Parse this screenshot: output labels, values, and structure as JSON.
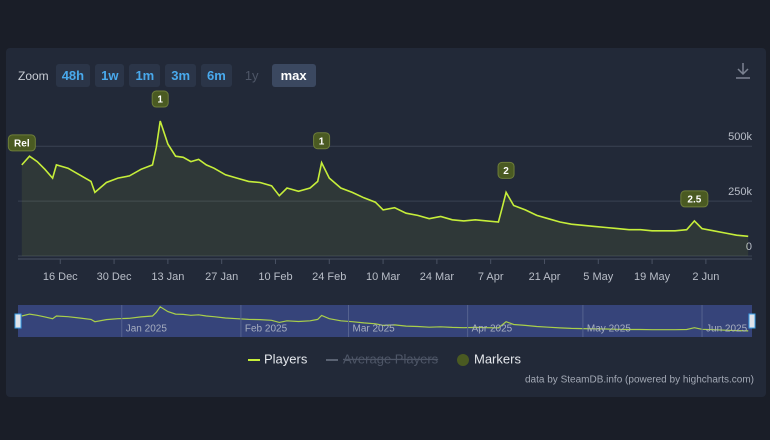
{
  "zoom": {
    "label": "Zoom",
    "buttons": [
      "48h",
      "1w",
      "1m",
      "3m",
      "6m",
      "1y",
      "max"
    ],
    "selected": "max",
    "disabled": [
      "1y"
    ]
  },
  "chart_data": {
    "type": "line",
    "x": [
      "6 Dec",
      "8 Dec",
      "10 Dec",
      "12 Dec",
      "14 Dec",
      "15 Dec",
      "18 Dec",
      "21 Dec",
      "24 Dec",
      "25 Dec",
      "28 Dec",
      "31 Dec",
      "3 Jan",
      "6 Jan",
      "9 Jan",
      "10 Jan",
      "11 Jan",
      "13 Jan",
      "15 Jan",
      "17 Jan",
      "19 Jan",
      "21 Jan",
      "23 Jan",
      "25 Jan",
      "28 Jan",
      "31 Jan",
      "3 Feb",
      "6 Feb",
      "9 Feb",
      "11 Feb",
      "13 Feb",
      "16 Feb",
      "19 Feb",
      "21 Feb",
      "22 Feb",
      "24 Feb",
      "27 Feb",
      "2 Mar",
      "5 Mar",
      "8 Mar",
      "10 Mar",
      "13 Mar",
      "16 Mar",
      "19 Mar",
      "22 Mar",
      "25 Mar",
      "28 Mar",
      "31 Mar",
      "3 Apr",
      "6 Apr",
      "9 Apr",
      "10 Apr",
      "11 Apr",
      "13 Apr",
      "16 Apr",
      "19 Apr",
      "22 Apr",
      "25 Apr",
      "28 Apr",
      "1 May",
      "4 May",
      "7 May",
      "10 May",
      "13 May",
      "16 May",
      "19 May",
      "22 May",
      "25 May",
      "28 May",
      "30 May",
      "1 Jun",
      "4 Jun",
      "7 Jun",
      "10 Jun",
      "13 Jun"
    ],
    "series": [
      {
        "name": "Players",
        "color": "#c6ee3a",
        "values": [
          415000,
          455000,
          430000,
          395000,
          355000,
          415000,
          400000,
          370000,
          340000,
          290000,
          335000,
          355000,
          365000,
          395000,
          415000,
          495000,
          615000,
          510000,
          455000,
          450000,
          430000,
          440000,
          415000,
          400000,
          370000,
          355000,
          340000,
          335000,
          320000,
          275000,
          310000,
          295000,
          310000,
          340000,
          425000,
          355000,
          310000,
          290000,
          265000,
          245000,
          210000,
          220000,
          195000,
          185000,
          170000,
          180000,
          165000,
          160000,
          165000,
          160000,
          155000,
          220000,
          290000,
          230000,
          210000,
          185000,
          170000,
          155000,
          145000,
          140000,
          135000,
          130000,
          125000,
          120000,
          120000,
          115000,
          115000,
          115000,
          120000,
          160000,
          125000,
          115000,
          105000,
          95000,
          90000
        ]
      },
      {
        "name": "Average Players",
        "color": "#5a6272",
        "hidden": true
      }
    ],
    "markers": {
      "name": "Markers",
      "color": "#4a5a22",
      "items": [
        {
          "x": "6 Dec",
          "label": "Rel"
        },
        {
          "x": "11 Jan",
          "label": "1"
        },
        {
          "x": "22 Feb",
          "label": "1"
        },
        {
          "x": "11 Apr",
          "label": "2"
        },
        {
          "x": "30 May",
          "label": "2.5"
        }
      ]
    },
    "xlim": [
      "5 Dec",
      "14 Jun"
    ],
    "xticks": [
      "16 Dec",
      "30 Dec",
      "13 Jan",
      "27 Jan",
      "10 Feb",
      "24 Feb",
      "10 Mar",
      "24 Mar",
      "7 Apr",
      "21 Apr",
      "5 May",
      "19 May",
      "2 Jun"
    ],
    "ylim": [
      0,
      720000
    ],
    "yticks": [
      {
        "value": 0,
        "label": "0"
      },
      {
        "value": 250000,
        "label": "250k"
      },
      {
        "value": 500000,
        "label": "500k"
      }
    ],
    "grid": true,
    "navigator": {
      "labels": [
        "Jan 2025",
        "Feb 2025",
        "Mar 2025",
        "Apr 2025",
        "May 2025",
        "Jun 2025"
      ]
    },
    "credits": "data by SteamDB.info (powered by highcharts.com)"
  }
}
